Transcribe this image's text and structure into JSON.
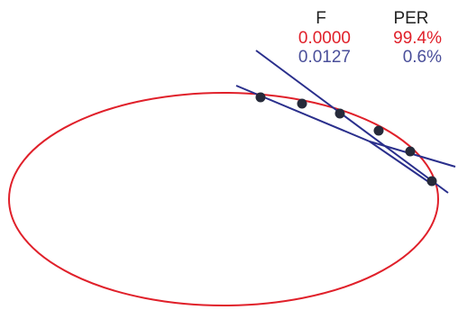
{
  "legend": {
    "headers": [
      "F",
      "PER"
    ],
    "rows": [
      {
        "f": "0.0000",
        "per": "99.4%",
        "color": "#e0202a"
      },
      {
        "f": "0.0127",
        "per": "0.6%",
        "color": "#4a4f9a"
      }
    ]
  },
  "colors": {
    "ellipse": "#e0202a",
    "lines": "#2a2f8c",
    "points": "#262a3a"
  }
}
